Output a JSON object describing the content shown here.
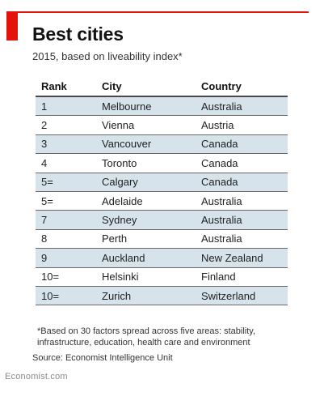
{
  "title": "Best cities",
  "subtitle": "2015, based on liveability index*",
  "table": {
    "headers": [
      "Rank",
      "City",
      "Country"
    ],
    "rows": [
      [
        "1",
        "Melbourne",
        "Australia"
      ],
      [
        "2",
        "Vienna",
        "Austria"
      ],
      [
        "3",
        "Vancouver",
        "Canada"
      ],
      [
        "4",
        "Toronto",
        "Canada"
      ],
      [
        "5=",
        "Calgary",
        "Canada"
      ],
      [
        "5=",
        "Adelaide",
        "Australia"
      ],
      [
        "7",
        "Sydney",
        "Australia"
      ],
      [
        "8",
        "Perth",
        "Australia"
      ],
      [
        "9",
        "Auckland",
        "New Zealand"
      ],
      [
        "10=",
        "Helsinki",
        "Finland"
      ],
      [
        "10=",
        "Zurich",
        "Switzerland"
      ]
    ]
  },
  "footnote": "*Based on 30 factors spread across five areas: stability, infrastructure, education, health care and environment",
  "source": "Source: Economist Intelligence Unit",
  "brand": "Economist.com",
  "colors": {
    "accent": "#e3120b",
    "row_shade": "#d6e3ea"
  }
}
